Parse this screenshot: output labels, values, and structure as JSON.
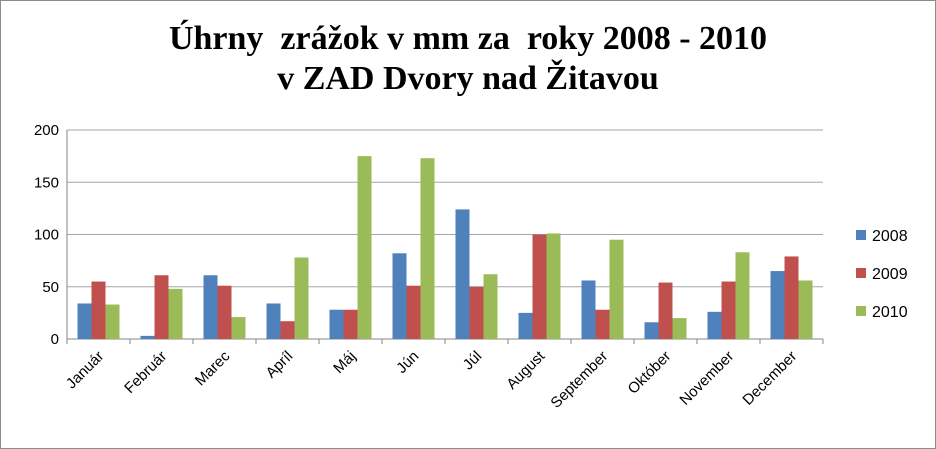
{
  "chart_data": {
    "type": "bar",
    "title_line1": "Úhrny  zrážok v mm za  roky 2008 - 2010",
    "title_line2": "v ZAD Dvory nad Žitavou",
    "categories": [
      "Január",
      "Február",
      "Marec",
      "Apríl",
      "Máj",
      "Jún",
      "Júl",
      "August",
      "September",
      "Október",
      "November",
      "December"
    ],
    "series": [
      {
        "name": "2008",
        "color": "#4f81bd",
        "values": [
          34,
          3,
          61,
          34,
          28,
          82,
          124,
          25,
          56,
          16,
          26,
          65
        ]
      },
      {
        "name": "2009",
        "color": "#c0504d",
        "values": [
          55,
          61,
          51,
          17,
          28,
          51,
          50,
          100,
          28,
          54,
          55,
          79
        ]
      },
      {
        "name": "2010",
        "color": "#9bbb59",
        "values": [
          33,
          48,
          21,
          78,
          175,
          173,
          62,
          101,
          95,
          20,
          83,
          56
        ]
      }
    ],
    "ylim": [
      0,
      200
    ],
    "yticks": [
      0,
      50,
      100,
      150,
      200
    ],
    "grid": true,
    "legend": "right"
  }
}
